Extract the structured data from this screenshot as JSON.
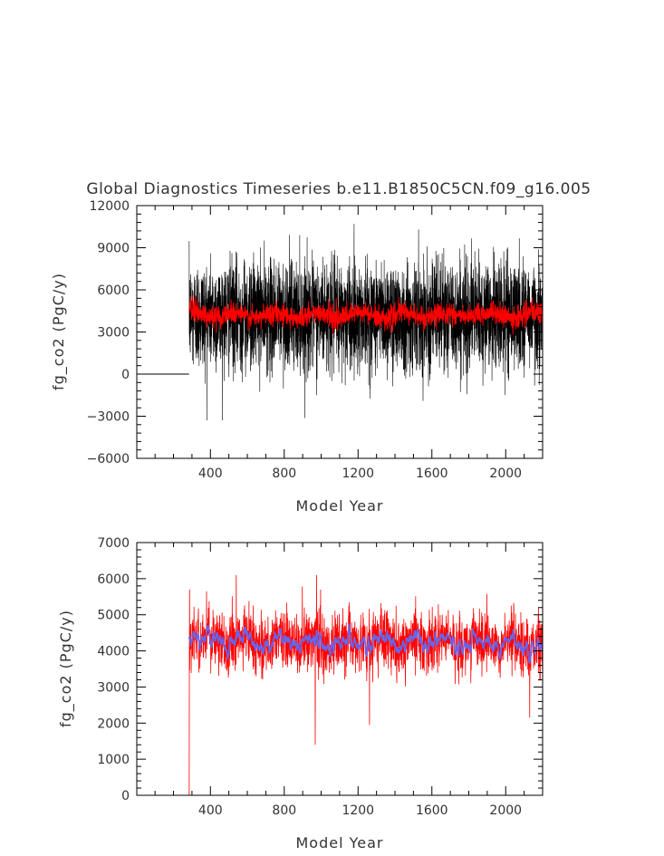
{
  "figure": {
    "title": "Global Diagnostics Timeseries b.e11.B1850C5CN.f09_g16.005"
  },
  "chart_data": [
    {
      "type": "line",
      "xlabel": "Model Year",
      "ylabel": "fg_co2 (PgC/y)",
      "xlim": [
        1,
        2200
      ],
      "ylim": [
        -6000,
        12000
      ],
      "xticks": [
        400,
        800,
        1200,
        1600,
        2000
      ],
      "yticks": [
        -6000,
        -3000,
        0,
        3000,
        6000,
        9000,
        12000
      ],
      "xtick_labels": [
        "400",
        "800",
        "1200",
        "1600",
        "2000"
      ],
      "ytick_labels": [
        "−6000",
        "−3000",
        "0",
        "3000",
        "6000",
        "9000",
        "12000"
      ],
      "grid": false,
      "series": [
        {
          "style": "monthly values (black)",
          "color": "#000000",
          "zero_until_year": 284,
          "start_year": 285,
          "end_year": 2200,
          "mean": 4200,
          "typical_range": [
            -1500,
            9500
          ],
          "extremes": [
            -3300,
            10700
          ]
        },
        {
          "style": "annual mean (red)",
          "color": "#ff0000",
          "start_year": 285,
          "end_year": 2200,
          "mean": 4200,
          "typical_range": [
            3000,
            5600
          ]
        }
      ]
    },
    {
      "type": "line",
      "xlabel": "Model Year",
      "ylabel": "fg_co2 (PgC/y)",
      "xlim": [
        1,
        2200
      ],
      "ylim": [
        0,
        7000
      ],
      "xticks": [
        400,
        800,
        1200,
        1600,
        2000
      ],
      "yticks": [
        0,
        1000,
        2000,
        3000,
        4000,
        5000,
        6000,
        7000
      ],
      "xtick_labels": [
        "400",
        "800",
        "1200",
        "1600",
        "2000"
      ],
      "ytick_labels": [
        "0",
        "1000",
        "2000",
        "3000",
        "4000",
        "5000",
        "6000",
        "7000"
      ],
      "grid": false,
      "series": [
        {
          "style": "annual mean (red)",
          "color": "#ff0000",
          "start_year": 285,
          "end_year": 2200,
          "mean": 4250,
          "typical_range": [
            3300,
            5400
          ],
          "notable_points": [
            [
              285,
              0
            ],
            [
              287,
              5700
            ],
            [
              540,
              6100
            ],
            [
              968,
              1400
            ],
            [
              975,
              6100
            ],
            [
              1262,
              1950
            ],
            [
              2130,
              2150
            ]
          ]
        },
        {
          "style": "smoothed running mean (blue)",
          "color": "#6666ee",
          "start_year": 285,
          "end_year": 2200,
          "mean": 4250,
          "typical_range": [
            3900,
            4800
          ]
        }
      ]
    }
  ],
  "colors": {
    "axes": "#000000",
    "text": "#333333",
    "monthly": "#000000",
    "annual": "#ff0000",
    "smoothed": "#6666ee"
  }
}
